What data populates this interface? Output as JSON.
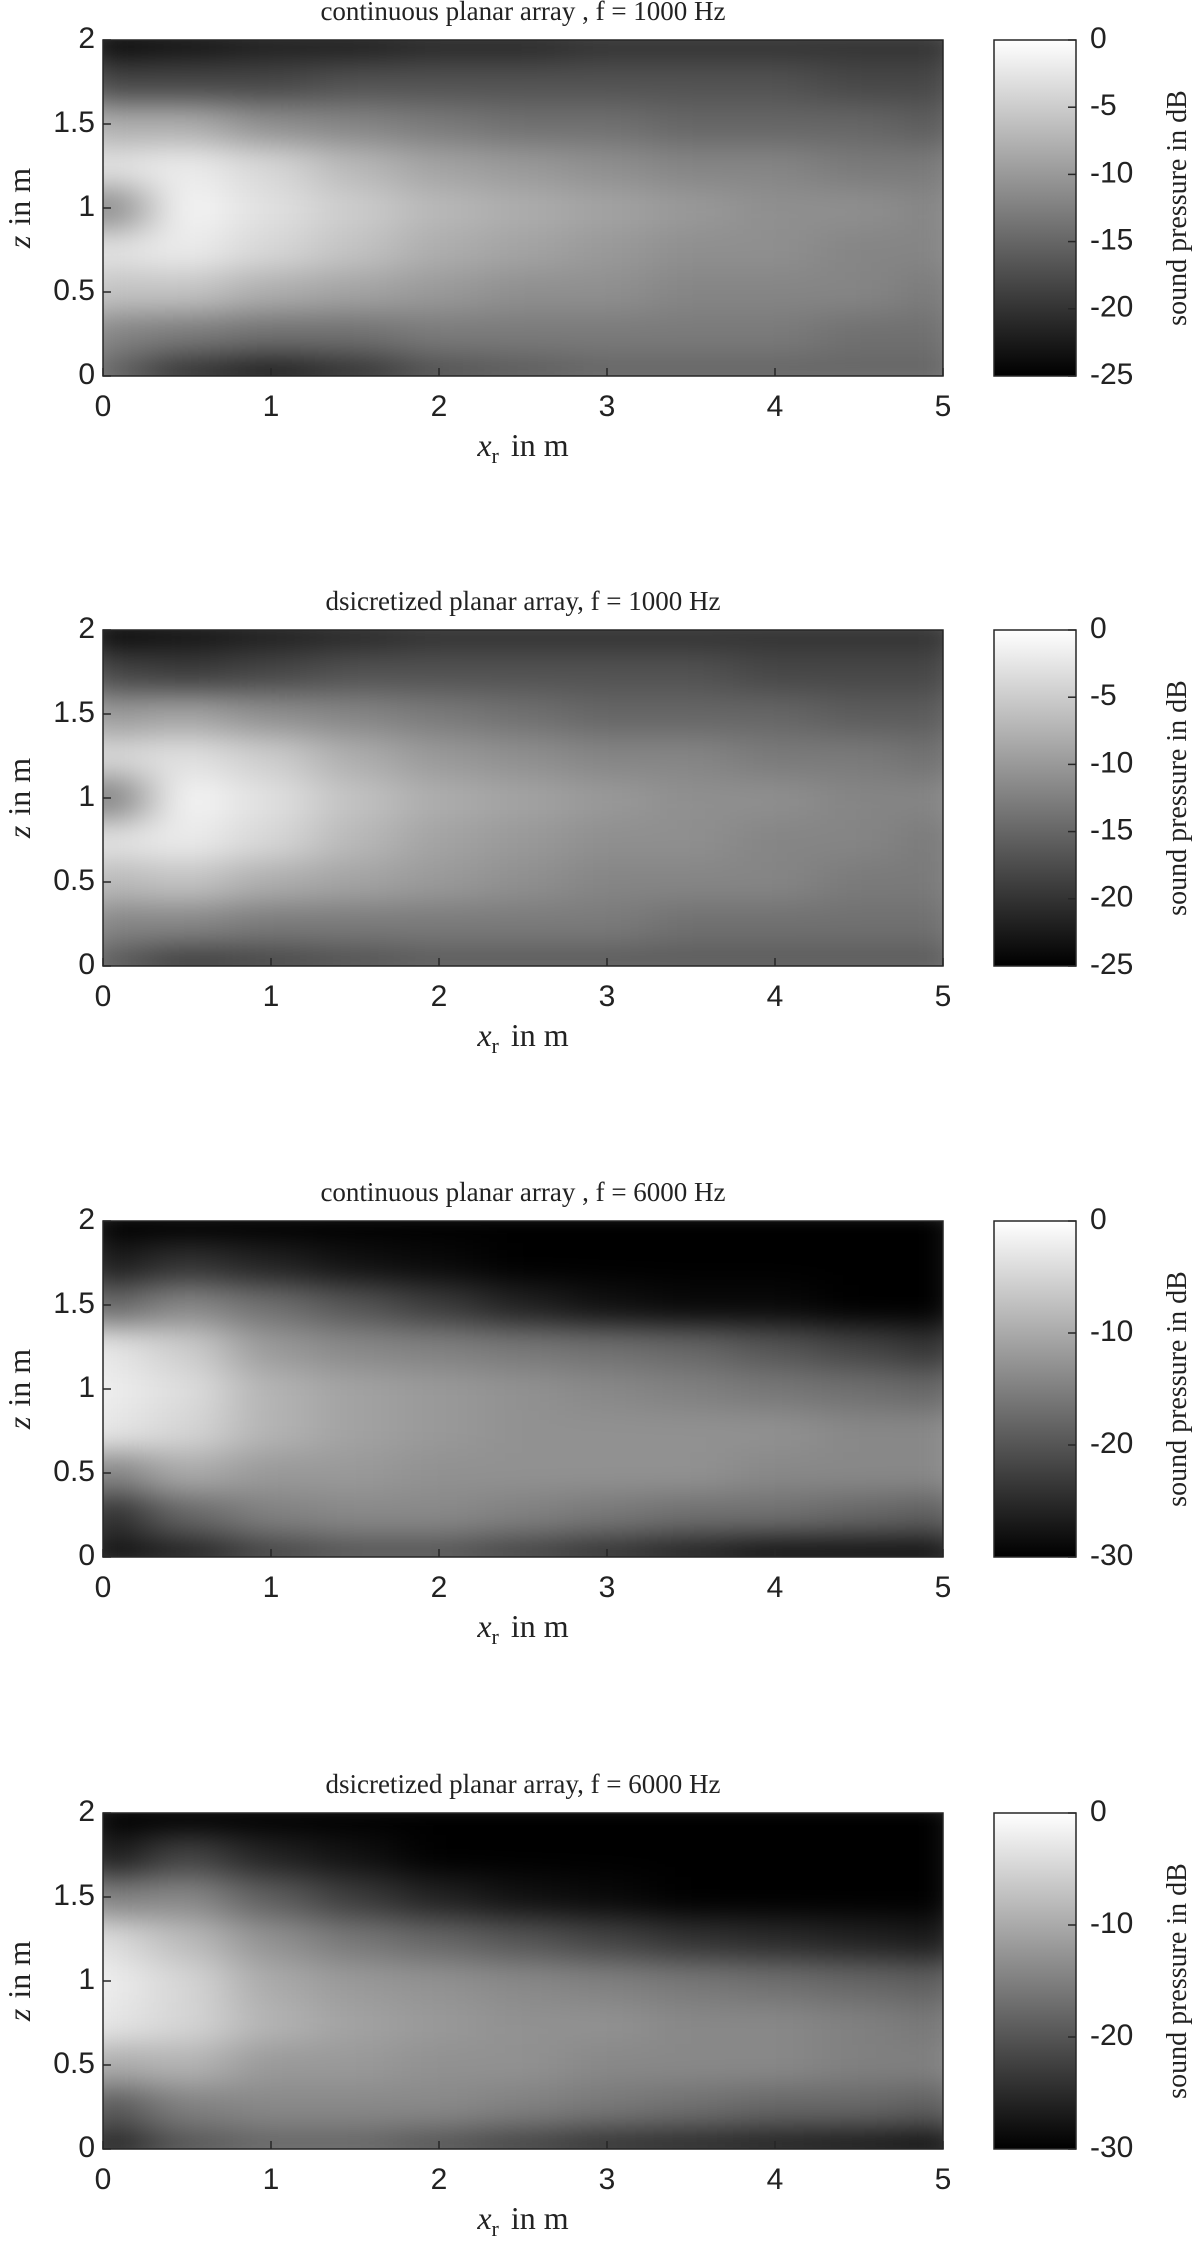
{
  "chart_data": [
    {
      "type": "heatmap",
      "title": "continuous planar array , f = 1000 Hz",
      "xlabel": {
        "var": "x",
        "sub": "r",
        "unit": "in m"
      },
      "ylabel": {
        "var": "z",
        "unit": "in m"
      },
      "xlim": [
        0,
        5
      ],
      "ylim": [
        0,
        2
      ],
      "xticks": [
        0,
        1,
        2,
        3,
        4,
        5
      ],
      "yticks": [
        0,
        0.5,
        1,
        1.5,
        2
      ],
      "x": [
        0,
        0.5,
        1,
        1.5,
        2,
        2.5,
        3,
        3.5,
        4,
        4.5,
        5
      ],
      "y": [
        0,
        0.25,
        0.5,
        0.75,
        1,
        1.25,
        1.5,
        1.75,
        2
      ],
      "values": [
        [
          -15,
          -20,
          -22,
          -20,
          -17,
          -16,
          -15,
          -15,
          -15,
          -15,
          -15
        ],
        [
          -12,
          -13,
          -14,
          -14,
          -13,
          -13,
          -13,
          -13,
          -13,
          -14,
          -14
        ],
        [
          -6,
          -6,
          -8,
          -9,
          -10,
          -11,
          -11,
          -12,
          -12,
          -12,
          -13
        ],
        [
          -3,
          -2,
          -4,
          -6,
          -8,
          -9,
          -10,
          -11,
          -11,
          -12,
          -12
        ],
        [
          -12,
          -1,
          -3,
          -5,
          -7,
          -8,
          -9,
          -10,
          -11,
          -11,
          -12
        ],
        [
          -3,
          -2,
          -4,
          -7,
          -9,
          -10,
          -11,
          -12,
          -12,
          -13,
          -13
        ],
        [
          -8,
          -8,
          -11,
          -12,
          -13,
          -14,
          -14,
          -15,
          -15,
          -15,
          -16
        ],
        [
          -18,
          -18,
          -18,
          -17,
          -17,
          -17,
          -17,
          -17,
          -17,
          -18,
          -18
        ],
        [
          -24,
          -23,
          -22,
          -22,
          -21,
          -21,
          -20,
          -20,
          -20,
          -20,
          -20
        ]
      ],
      "colormap": "gray",
      "colorbar": {
        "label": "sound pressure in dB",
        "lim": [
          -25,
          0
        ],
        "ticks": [
          0,
          -5,
          -10,
          -15,
          -20,
          -25
        ]
      }
    },
    {
      "type": "heatmap",
      "title": "dsicretized planar array, f = 1000 Hz",
      "xlabel": {
        "var": "x",
        "sub": "r",
        "unit": "in m"
      },
      "ylabel": {
        "var": "z",
        "unit": "in m"
      },
      "xlim": [
        0,
        5
      ],
      "ylim": [
        0,
        2
      ],
      "xticks": [
        0,
        1,
        2,
        3,
        4,
        5
      ],
      "yticks": [
        0,
        0.5,
        1,
        1.5,
        2
      ],
      "x": [
        0,
        0.5,
        1,
        1.5,
        2,
        2.5,
        3,
        3.5,
        4,
        4.5,
        5
      ],
      "y": [
        0,
        0.25,
        0.5,
        0.75,
        1,
        1.25,
        1.5,
        1.75,
        2
      ],
      "values": [
        [
          -16,
          -19,
          -18,
          -17,
          -16,
          -16,
          -16,
          -16,
          -16,
          -16,
          -16
        ],
        [
          -12,
          -12,
          -13,
          -13,
          -13,
          -13,
          -13,
          -14,
          -14,
          -14,
          -14
        ],
        [
          -7,
          -6,
          -8,
          -9,
          -10,
          -11,
          -12,
          -12,
          -12,
          -13,
          -13
        ],
        [
          -3,
          -2,
          -4,
          -7,
          -9,
          -10,
          -11,
          -11,
          -12,
          -12,
          -13
        ],
        [
          -13,
          -1,
          -3,
          -6,
          -8,
          -9,
          -10,
          -11,
          -11,
          -12,
          -12
        ],
        [
          -4,
          -3,
          -5,
          -8,
          -10,
          -11,
          -12,
          -12,
          -13,
          -13,
          -14
        ],
        [
          -10,
          -9,
          -11,
          -12,
          -13,
          -14,
          -15,
          -15,
          -15,
          -16,
          -16
        ],
        [
          -18,
          -19,
          -18,
          -17,
          -17,
          -17,
          -17,
          -17,
          -18,
          -18,
          -18
        ],
        [
          -24,
          -23,
          -22,
          -21,
          -20,
          -20,
          -20,
          -20,
          -20,
          -20,
          -20
        ]
      ],
      "colormap": "gray",
      "colorbar": {
        "label": "sound pressure in dB",
        "lim": [
          -25,
          0
        ],
        "ticks": [
          0,
          -5,
          -10,
          -15,
          -20,
          -25
        ]
      }
    },
    {
      "type": "heatmap",
      "title": "continuous planar array , f = 6000 Hz",
      "xlabel": {
        "var": "x",
        "sub": "r",
        "unit": "in m"
      },
      "ylabel": {
        "var": "z",
        "unit": "in m"
      },
      "xlim": [
        0,
        5
      ],
      "ylim": [
        0,
        2
      ],
      "xticks": [
        0,
        1,
        2,
        3,
        4,
        5
      ],
      "yticks": [
        0,
        0.5,
        1,
        1.5,
        2
      ],
      "x": [
        0,
        0.5,
        1,
        1.5,
        2,
        2.5,
        3,
        3.5,
        4,
        4.5,
        5
      ],
      "y": [
        0,
        0.25,
        0.5,
        0.75,
        1,
        1.25,
        1.5,
        1.75,
        2
      ],
      "values": [
        [
          -28,
          -26,
          -22,
          -20,
          -20,
          -22,
          -24,
          -26,
          -28,
          -28,
          -28
        ],
        [
          -25,
          -18,
          -15,
          -14,
          -14,
          -15,
          -16,
          -17,
          -17,
          -18,
          -19
        ],
        [
          -15,
          -10,
          -12,
          -12,
          -13,
          -13,
          -13,
          -13,
          -14,
          -14,
          -14
        ],
        [
          -3,
          -5,
          -9,
          -11,
          -12,
          -13,
          -13,
          -13,
          -13,
          -14,
          -14
        ],
        [
          -2,
          -4,
          -9,
          -11,
          -12,
          -13,
          -14,
          -15,
          -16,
          -17,
          -18
        ],
        [
          -3,
          -6,
          -12,
          -14,
          -15,
          -16,
          -17,
          -18,
          -20,
          -22,
          -24
        ],
        [
          -18,
          -14,
          -17,
          -20,
          -23,
          -26,
          -28,
          -29,
          -29,
          -30,
          -30
        ],
        [
          -27,
          -24,
          -26,
          -28,
          -29,
          -30,
          -30,
          -30,
          -30,
          -30,
          -30
        ],
        [
          -30,
          -30,
          -30,
          -30,
          -30,
          -30,
          -30,
          -30,
          -30,
          -30,
          -30
        ]
      ],
      "colormap": "gray",
      "colorbar": {
        "label": "sound pressure in dB",
        "lim": [
          -30,
          0
        ],
        "ticks": [
          0,
          -10,
          -20,
          -30
        ]
      }
    },
    {
      "type": "heatmap",
      "title": "dsicretized planar array, f = 6000 Hz",
      "xlabel": {
        "var": "x",
        "sub": "r",
        "unit": "in m"
      },
      "ylabel": {
        "var": "z",
        "unit": "in m"
      },
      "xlim": [
        0,
        5
      ],
      "ylim": [
        0,
        2
      ],
      "xticks": [
        0,
        1,
        2,
        3,
        4,
        5
      ],
      "yticks": [
        0,
        0.5,
        1,
        1.5,
        2
      ],
      "x": [
        0,
        0.5,
        1,
        1.5,
        2,
        2.5,
        3,
        3.5,
        4,
        4.5,
        5
      ],
      "y": [
        0,
        0.25,
        0.5,
        0.75,
        1,
        1.25,
        1.5,
        1.75,
        2
      ],
      "values": [
        [
          -26,
          -20,
          -18,
          -18,
          -20,
          -22,
          -24,
          -25,
          -26,
          -27,
          -28
        ],
        [
          -20,
          -15,
          -14,
          -14,
          -14,
          -15,
          -16,
          -17,
          -18,
          -18,
          -19
        ],
        [
          -10,
          -9,
          -12,
          -12,
          -13,
          -13,
          -14,
          -14,
          -14,
          -15,
          -15
        ],
        [
          -3,
          -5,
          -9,
          -11,
          -12,
          -13,
          -13,
          -14,
          -14,
          -15,
          -16
        ],
        [
          -2,
          -5,
          -10,
          -12,
          -13,
          -14,
          -15,
          -16,
          -17,
          -18,
          -19
        ],
        [
          -4,
          -8,
          -13,
          -16,
          -18,
          -20,
          -22,
          -24,
          -25,
          -26,
          -27
        ],
        [
          -15,
          -14,
          -19,
          -23,
          -26,
          -28,
          -29,
          -30,
          -30,
          -30,
          -30
        ],
        [
          -27,
          -22,
          -26,
          -28,
          -30,
          -30,
          -30,
          -30,
          -30,
          -30,
          -30
        ],
        [
          -30,
          -30,
          -30,
          -30,
          -30,
          -30,
          -30,
          -30,
          -30,
          -30,
          -30
        ]
      ],
      "colormap": "gray",
      "colorbar": {
        "label": "sound pressure in dB",
        "lim": [
          -30,
          0
        ],
        "ticks": [
          0,
          -10,
          -20,
          -30
        ]
      }
    }
  ]
}
